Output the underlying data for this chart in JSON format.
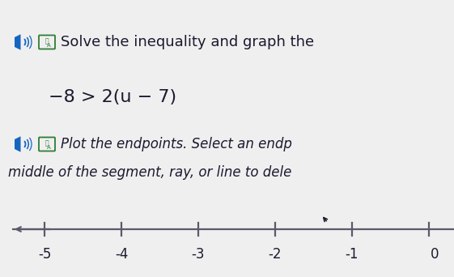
{
  "bg_color": "#f0eff0",
  "title_line1": "Solve the inequality and graph the",
  "equation": "−8 > 2(u − 7)",
  "instruction_line1": "Plot the endpoints. Select an endp",
  "instruction_line2": "middle of the segment, ray, or line to dele",
  "number_line": {
    "x_min": -5.8,
    "x_max": 0.3,
    "tick_positions": [
      -5,
      -4,
      -3,
      -2,
      -1
    ],
    "tick_labels": [
      "-5",
      "-4",
      "-3",
      "-2",
      "-1"
    ],
    "label_0": "0"
  },
  "text_color": "#1a1a2e",
  "icon_blue": "#1565c0",
  "icon_green": "#2e7d32",
  "line_color": "#5a5a6a",
  "font_size_title": 13,
  "font_size_eq": 16,
  "font_size_instr": 12,
  "font_size_tick": 12
}
